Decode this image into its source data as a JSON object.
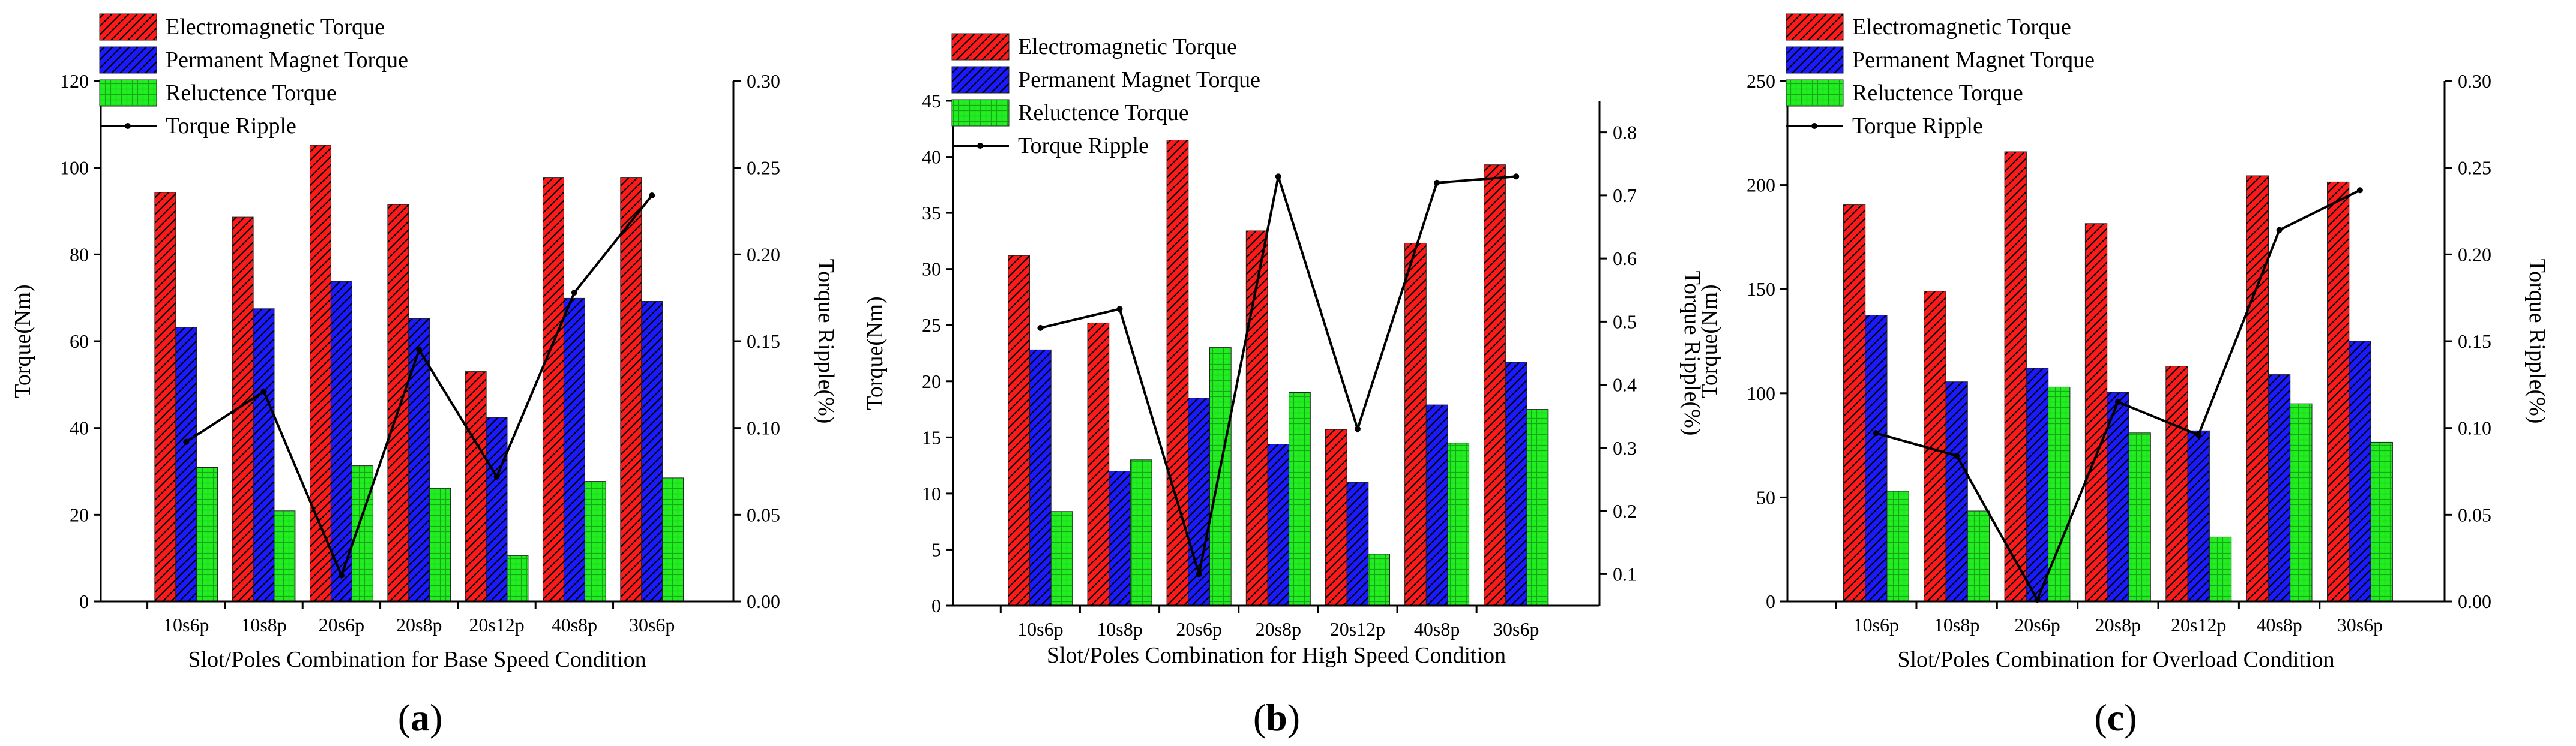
{
  "chart_data": [
    {
      "type": "bar",
      "panel_label": "a",
      "categories": [
        "10s6p",
        "10s8p",
        "20s6p",
        "20s8p",
        "20s12p",
        "40s8p",
        "30s6p"
      ],
      "series": [
        {
          "name": "Electromagnetic Torque",
          "axis": "left",
          "values": [
            94.3,
            88.6,
            105.2,
            91.5,
            53.0,
            97.8,
            97.8
          ]
        },
        {
          "name": "Permanent Magnet Torque",
          "axis": "left",
          "values": [
            63.2,
            67.5,
            73.8,
            65.2,
            42.4,
            69.9,
            69.2
          ]
        },
        {
          "name": "Reluctence Torque",
          "axis": "left",
          "values": [
            30.9,
            20.9,
            31.3,
            26.1,
            10.6,
            27.7,
            28.5
          ]
        },
        {
          "name": "Torque Ripple",
          "type": "line",
          "axis": "right",
          "values": [
            0.092,
            0.121,
            0.015,
            0.145,
            0.072,
            0.178,
            0.234
          ]
        }
      ],
      "xlabel": "Slot/Poles Combination for Base Speed Condition",
      "ylabel": "Torque(Nm)",
      "y2label": "Torque Ripple(%)",
      "ylim": [
        0,
        120
      ],
      "yticks": [
        "0",
        "20",
        "40",
        "60",
        "80",
        "100",
        "120"
      ],
      "y2lim": [
        0,
        0.3
      ],
      "y2ticks": [
        "0.00",
        "0.05",
        "0.10",
        "0.15",
        "0.20",
        "0.25",
        "0.30"
      ],
      "legend_position": "top-left"
    },
    {
      "type": "bar",
      "panel_label": "b",
      "categories": [
        "10s6p",
        "10s8p",
        "20s6p",
        "20s8p",
        "20s12p",
        "40s8p",
        "30s6p"
      ],
      "series": [
        {
          "name": "Electromagnetic Torque",
          "axis": "left",
          "values": [
            31.2,
            25.2,
            41.5,
            33.4,
            15.7,
            32.3,
            39.3
          ]
        },
        {
          "name": "Permanent Magnet Torque",
          "axis": "left",
          "values": [
            22.8,
            12.0,
            18.5,
            14.4,
            11.0,
            17.9,
            21.7
          ]
        },
        {
          "name": "Reluctence Torque",
          "axis": "left",
          "values": [
            8.4,
            13.0,
            23.0,
            19.0,
            4.6,
            14.5,
            17.5
          ]
        },
        {
          "name": "Torque Ripple",
          "type": "line",
          "axis": "right",
          "values": [
            0.49,
            0.52,
            0.1,
            0.73,
            0.33,
            0.72,
            0.73
          ]
        }
      ],
      "xlabel": "Slot/Poles Combination for High Speed Condition",
      "ylabel": "Torque(Nm)",
      "y2label": "Torque Ripple(%)",
      "ylim": [
        0,
        45
      ],
      "yticks": [
        "0",
        "5",
        "10",
        "15",
        "20",
        "25",
        "30",
        "35",
        "40",
        "45"
      ],
      "y2lim": [
        0.05,
        0.85
      ],
      "y2ticks": [
        "0.1",
        "0.2",
        "0.3",
        "0.4",
        "0.5",
        "0.6",
        "0.7",
        "0.8"
      ],
      "legend_position": "top-left"
    },
    {
      "type": "bar",
      "panel_label": "c",
      "categories": [
        "10s6p",
        "10s8p",
        "20s6p",
        "20s8p",
        "20s12p",
        "40s8p",
        "30s6p"
      ],
      "series": [
        {
          "name": "Electromagnetic Torque",
          "axis": "left",
          "values": [
            190.5,
            149.0,
            216.0,
            181.5,
            113.0,
            204.5,
            201.5
          ]
        },
        {
          "name": "Permanent Magnet Torque",
          "axis": "left",
          "values": [
            137.5,
            105.5,
            112.0,
            100.5,
            82.0,
            109.0,
            125.0
          ]
        },
        {
          "name": "Reluctence Torque",
          "axis": "left",
          "values": [
            53.0,
            43.5,
            103.0,
            81.0,
            31.0,
            95.0,
            76.5
          ]
        },
        {
          "name": "Torque Ripple",
          "type": "line",
          "axis": "right",
          "values": [
            0.097,
            0.084,
            0.001,
            0.115,
            0.096,
            0.214,
            0.237
          ]
        }
      ],
      "xlabel": "Slot/Poles Combination for Overload Condition",
      "ylabel": "Torque(Nm)",
      "y2label": "Torque Ripple(%)",
      "ylim": [
        0,
        250
      ],
      "yticks": [
        "0",
        "50",
        "100",
        "150",
        "200",
        "250"
      ],
      "y2lim": [
        0,
        0.3
      ],
      "y2ticks": [
        "0.00",
        "0.05",
        "0.10",
        "0.15",
        "0.20",
        "0.25",
        "0.30"
      ],
      "legend_position": "top-left"
    }
  ],
  "colors": {
    "electromagnetic": "#ff1a1a",
    "permanent_magnet": "#1a1aff",
    "reluctance": "#22ee22",
    "line": "#000000"
  }
}
